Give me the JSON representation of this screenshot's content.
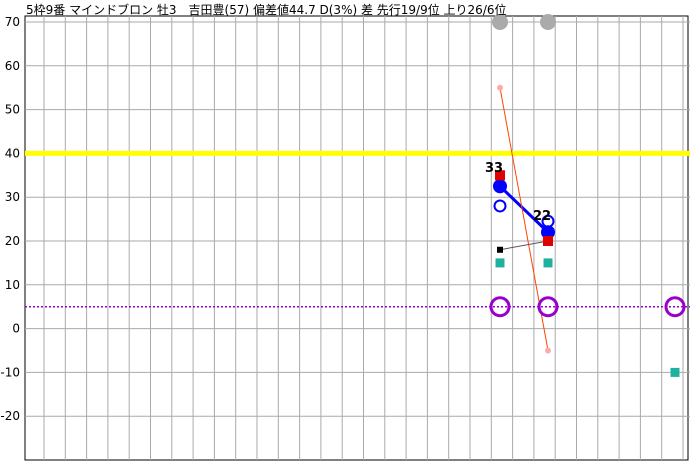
{
  "chart_data": {
    "type": "line",
    "title": "5枠9番 マインドブロン 牡3　吉田豊(57) 偏差値44.7 D(3%) 差 先行19/9位 上り26/6位",
    "xlabel": "",
    "ylabel": "",
    "ylim": [
      -30,
      70
    ],
    "y_ticks": [
      "70",
      "60",
      "50",
      "40",
      "30",
      "20",
      "10",
      "0",
      "-10",
      "-20"
    ],
    "grid": true,
    "legend": "none",
    "reference_lines": [
      {
        "y": 40,
        "color": "#ffff00",
        "style": "solid"
      },
      {
        "y": 5,
        "color": "#9900cc",
        "style": "dotted"
      }
    ],
    "series": [
      {
        "color": "#0000ff",
        "points": [
          {
            "x": 0,
            "y": 32.5
          },
          {
            "x": 1,
            "y": 22
          }
        ]
      },
      {
        "color": "#ff4400",
        "points": [
          {
            "x": 0,
            "y": 55
          },
          {
            "x": 1,
            "y": -5
          }
        ]
      },
      {
        "color": "#555555",
        "points": [
          {
            "x": 0,
            "y": 18
          },
          {
            "x": 1,
            "y": 20
          }
        ]
      }
    ],
    "markers": [
      {
        "type": "red-square",
        "points": [
          {
            "x": 0,
            "y": 35
          },
          {
            "x": 1,
            "y": 20
          }
        ]
      },
      {
        "type": "blue-open-circle",
        "points": [
          {
            "x": 0,
            "y": 28
          },
          {
            "x": 1,
            "y": 24.5
          }
        ]
      },
      {
        "type": "teal-square",
        "points": [
          {
            "x": 0,
            "y": 15
          },
          {
            "x": 1,
            "y": 15
          },
          {
            "x": 2,
            "y": -10
          }
        ]
      },
      {
        "type": "purple-ring",
        "points": [
          {
            "x": 0,
            "y": 5
          },
          {
            "x": 1,
            "y": 5
          },
          {
            "x": 2,
            "y": 5
          }
        ]
      },
      {
        "type": "gray-dot",
        "points": [
          {
            "x": 0,
            "y": 70
          },
          {
            "x": 1,
            "y": 70
          }
        ]
      }
    ],
    "data_labels": [
      {
        "x": 0,
        "y": 33,
        "text": "33"
      },
      {
        "x": 1,
        "y": 22,
        "text": "22"
      }
    ]
  }
}
